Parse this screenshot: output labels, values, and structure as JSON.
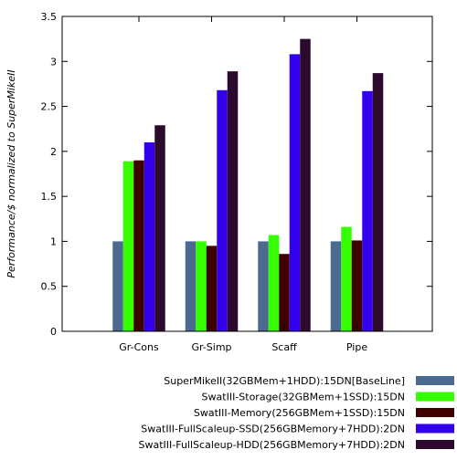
{
  "chart_data": {
    "type": "bar",
    "categories": [
      "Gr-Cons",
      "Gr-Simp",
      "Scaff",
      "Pipe"
    ],
    "ylabel": "Performance/$ normalized to SuperMikeII",
    "xlabel": "",
    "ylim": [
      0,
      3.5
    ],
    "yticks": [
      "0",
      "0.5",
      "1",
      "1.5",
      "2",
      "2.5",
      "3",
      "3.5"
    ],
    "grid": false,
    "legend_position": "bottom-right",
    "series": [
      {
        "name": "SuperMikeII(32GBMem+1HDD):15DN[BaseLine]",
        "color": "#4a6a8f",
        "values": [
          1.0,
          1.0,
          1.0,
          1.0
        ]
      },
      {
        "name": "SwatIII-Storage(32GBMem+1SSD):15DN",
        "color": "#33ff00",
        "values": [
          1.89,
          1.0,
          1.07,
          1.16
        ]
      },
      {
        "name": "SwatIII-Memory(256GBMem+1SSD):15DN",
        "color": "#3f0000",
        "values": [
          1.9,
          0.95,
          0.86,
          1.01
        ]
      },
      {
        "name": "SwatIII-FullScaleup-SSD(256GBMemory+7HDD):2DN",
        "color": "#3300ee",
        "values": [
          2.1,
          2.68,
          3.08,
          2.67
        ]
      },
      {
        "name": "SwatIII-FullScaleup-HDD(256GBMemory+7HDD):2DN",
        "color": "#2d0a2d",
        "values": [
          2.29,
          2.89,
          3.25,
          2.87
        ]
      }
    ]
  }
}
